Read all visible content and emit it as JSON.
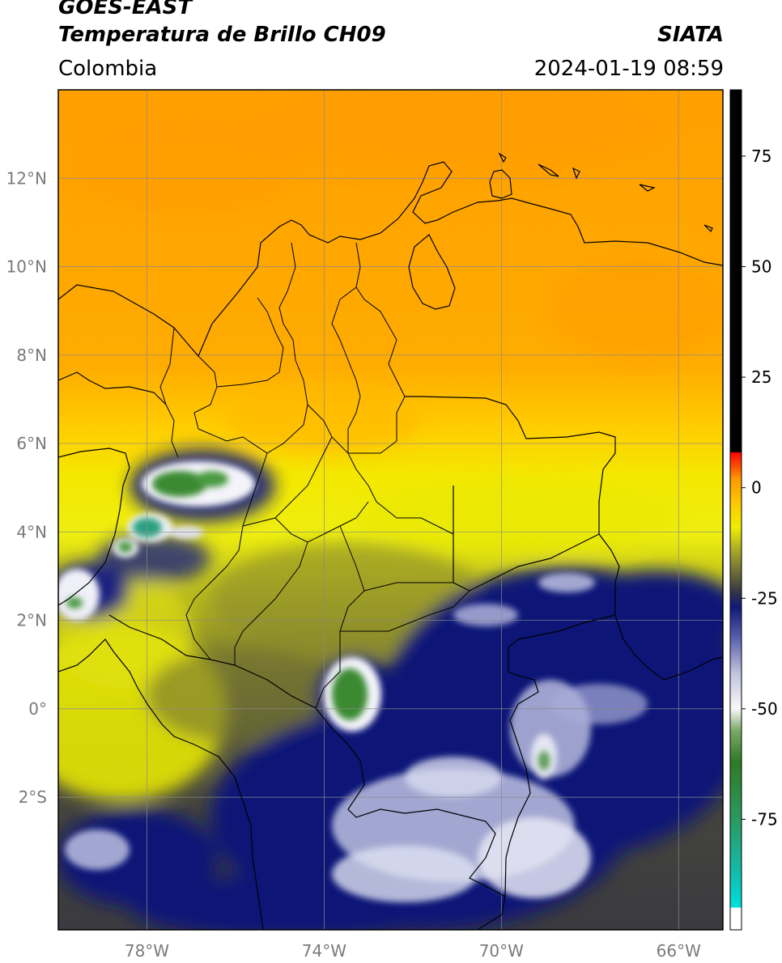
{
  "header": {
    "satellite": "GOES-EAST",
    "product": "Temperatura de Brillo CH09",
    "region": "Colombia",
    "organization": "SIATA",
    "datetime": "2024-01-19 08:59"
  },
  "map": {
    "lon_range": [
      -80,
      -65
    ],
    "lat_range": [
      -5,
      14
    ],
    "lat_ticks": [
      {
        "value": 12,
        "label": "12°N"
      },
      {
        "value": 10,
        "label": "10°N"
      },
      {
        "value": 8,
        "label": "8°N"
      },
      {
        "value": 6,
        "label": "6°N"
      },
      {
        "value": 4,
        "label": "4°N"
      },
      {
        "value": 2,
        "label": "2°N"
      },
      {
        "value": 0,
        "label": "0°"
      },
      {
        "value": -2,
        "label": "2°S"
      }
    ],
    "lon_ticks": [
      {
        "value": -78,
        "label": "78°W"
      },
      {
        "value": -74,
        "label": "74°W"
      },
      {
        "value": -70,
        "label": "70°W"
      },
      {
        "value": -66,
        "label": "66°W"
      }
    ],
    "gridlines": true
  },
  "colorbar": {
    "range": [
      -100,
      90
    ],
    "ticks": [
      {
        "value": 75,
        "label": "75"
      },
      {
        "value": 50,
        "label": "50"
      },
      {
        "value": 25,
        "label": "25"
      },
      {
        "value": 0,
        "label": "0"
      },
      {
        "value": -25,
        "label": "-25"
      },
      {
        "value": -50,
        "label": "-50"
      },
      {
        "value": -75,
        "label": "-75"
      }
    ],
    "stops": [
      {
        "v": -100,
        "c": "#ffffff"
      },
      {
        "v": -95,
        "c": "#ffffff"
      },
      {
        "v": -95,
        "c": "#00e0e0"
      },
      {
        "v": -88,
        "c": "#10c0b0"
      },
      {
        "v": -75,
        "c": "#2a9a60"
      },
      {
        "v": -62,
        "c": "#2f7a26"
      },
      {
        "v": -55,
        "c": "#7aa866"
      },
      {
        "v": -50,
        "c": "#f8f8f8"
      },
      {
        "v": -42,
        "c": "#c0c4de"
      },
      {
        "v": -34,
        "c": "#5b60ad"
      },
      {
        "v": -27,
        "c": "#0f1a78"
      },
      {
        "v": -24,
        "c": "#30304a"
      },
      {
        "v": -20,
        "c": "#62623a"
      },
      {
        "v": -14,
        "c": "#aaaa28"
      },
      {
        "v": -9,
        "c": "#eeee00"
      },
      {
        "v": -4,
        "c": "#ffcc00"
      },
      {
        "v": 2,
        "c": "#ff9900"
      },
      {
        "v": 6,
        "c": "#ff3300"
      },
      {
        "v": 8,
        "c": "#ff0000"
      },
      {
        "v": 8,
        "c": "#000000"
      },
      {
        "v": 90,
        "c": "#000000"
      }
    ]
  },
  "legend_colors": {
    "warm": "#ffa000",
    "mid": "#eeee10",
    "cold": "#0c1877",
    "coldest": "#3a8a30"
  }
}
